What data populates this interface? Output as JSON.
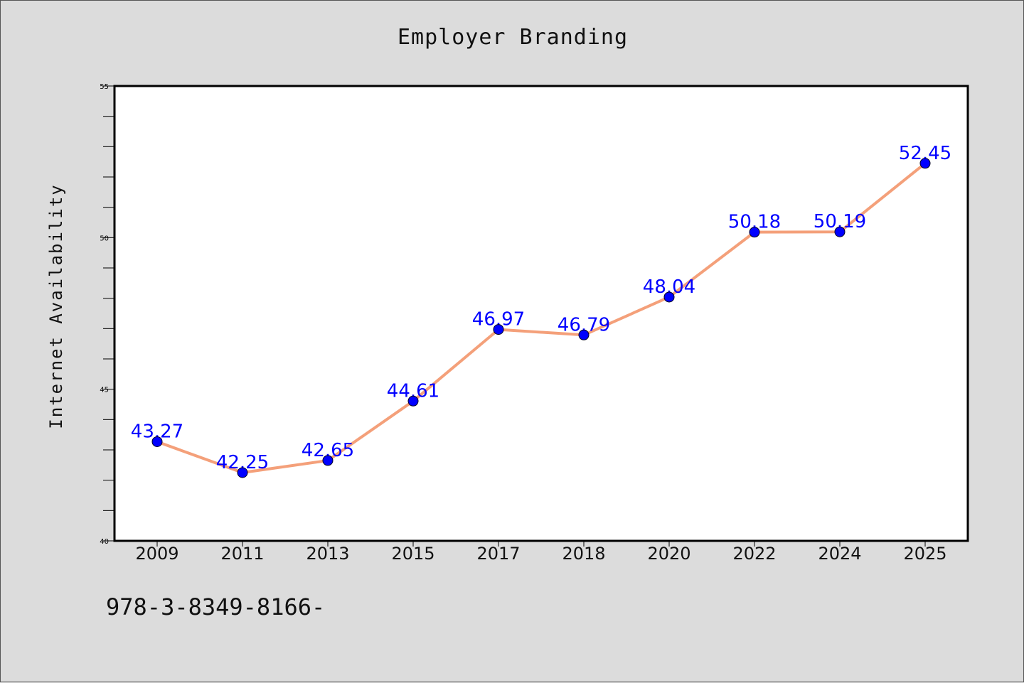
{
  "footer_text": "978-3-8349-8166-",
  "chart_data": {
    "type": "line",
    "title": "Employer Branding",
    "xlabel": "",
    "ylabel": "Internet Availability",
    "categories": [
      "2009",
      "2011",
      "2013",
      "2015",
      "2017",
      "2018",
      "2020",
      "2022",
      "2024",
      "2025"
    ],
    "series": [
      {
        "values": [
          43.27,
          42.25,
          42.65,
          44.61,
          46.97,
          46.79,
          48.04,
          50.18,
          50.19,
          52.45
        ],
        "labels": [
          "43.27",
          "42.25",
          "42.65",
          "44.61",
          "46.97",
          "46.79",
          "48.04",
          "50.18",
          "50.19",
          "52.45"
        ]
      }
    ],
    "ylim": [
      40,
      55
    ],
    "yticks": [
      "40",
      "45",
      "50",
      "55"
    ],
    "grid": false,
    "colors": {
      "line": "#f4a07a",
      "marker": "#0000ff",
      "label": "#0000ff",
      "axis": "#000000"
    }
  }
}
